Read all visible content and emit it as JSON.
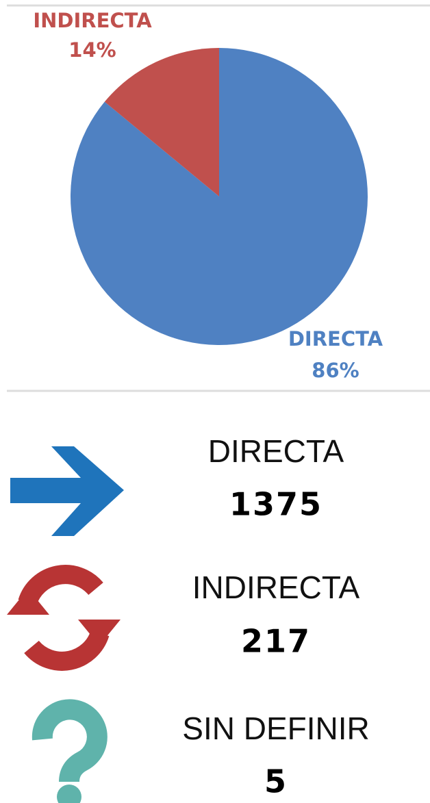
{
  "chart_data": {
    "type": "pie",
    "categories": [
      "DIRECTA",
      "INDIRECTA"
    ],
    "values": [
      86,
      14
    ],
    "value_labels": [
      "86%",
      "14%"
    ],
    "colors": [
      "#4f81c2",
      "#c0504d"
    ]
  },
  "stats": [
    {
      "label": "DIRECTA",
      "value": 1375
    },
    {
      "label": "INDIRECTA",
      "value": 217
    },
    {
      "label": "SIN DEFINIR",
      "value": 5
    }
  ]
}
